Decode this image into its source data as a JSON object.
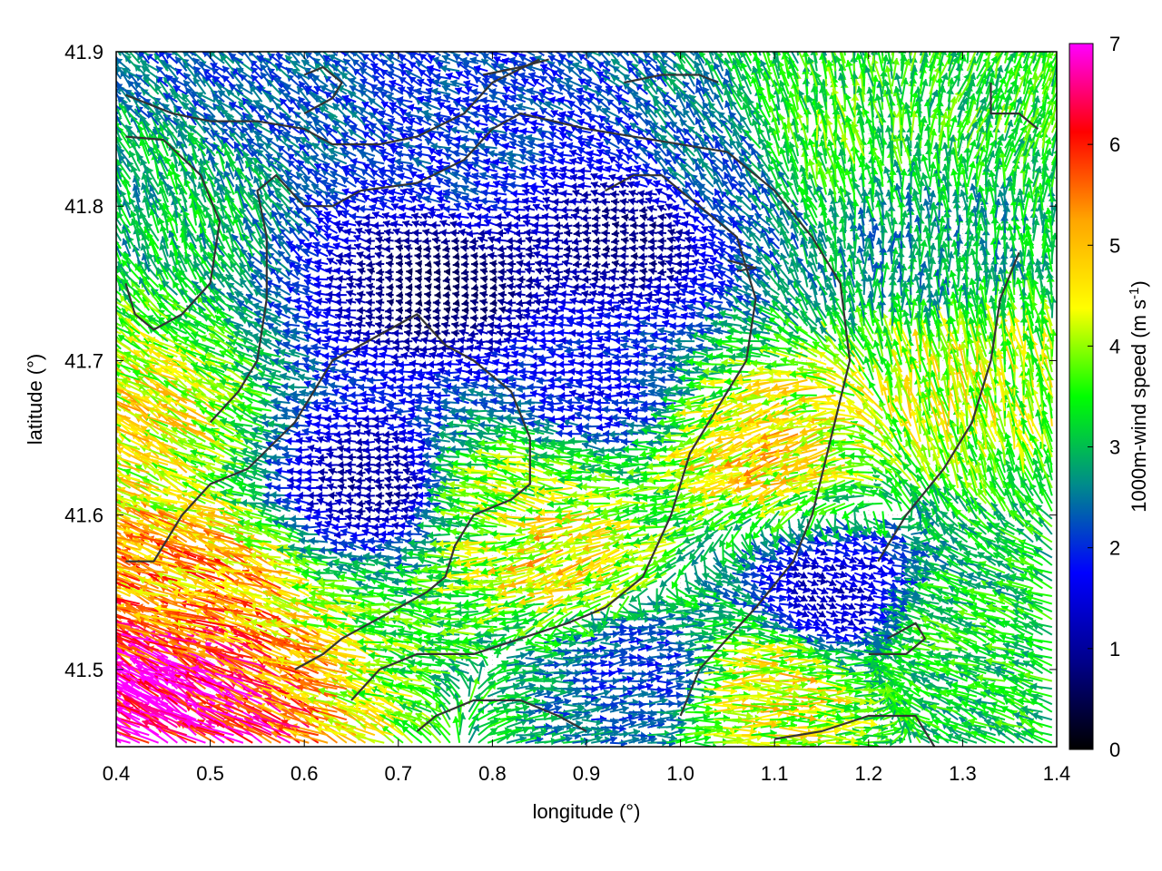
{
  "chart_data": {
    "type": "vector-field",
    "title": "",
    "xlabel": "longitude (°)",
    "ylabel": "latitude (°)",
    "xlim": [
      0.4,
      1.4
    ],
    "ylim": [
      41.45,
      41.9
    ],
    "x_ticks": [
      "0.4",
      "0.5",
      "0.6",
      "0.7",
      "0.8",
      "0.9",
      "1.0",
      "1.1",
      "1.2",
      "1.3",
      "1.4"
    ],
    "y_ticks": [
      "41.5",
      "41.6",
      "41.7",
      "41.8",
      "41.9"
    ],
    "grid": true,
    "colorbar": {
      "label_prefix": "1000m-wind speed (m s",
      "label_superscript": "-1",
      "label_suffix": ")",
      "range": [
        0,
        7
      ],
      "ticks": [
        "0",
        "1",
        "2",
        "3",
        "4",
        "5",
        "6",
        "7"
      ],
      "palette": [
        "#000000",
        "#00008b",
        "#0000ff",
        "#008b8b",
        "#00ff00",
        "#ffff00",
        "#ffa500",
        "#ff0000",
        "#ff00ff"
      ]
    },
    "grid_resolution_deg": [
      0.01,
      0.005
    ],
    "wind_regions": [
      {
        "lon": 0.45,
        "lat": 41.48,
        "speed": 6.8,
        "direction_to_deg": 150
      },
      {
        "lon": 0.5,
        "lat": 41.55,
        "speed": 5.2,
        "direction_to_deg": 160
      },
      {
        "lon": 0.43,
        "lat": 41.66,
        "speed": 4.5,
        "direction_to_deg": 150
      },
      {
        "lon": 0.47,
        "lat": 41.8,
        "speed": 3.0,
        "direction_to_deg": 110
      },
      {
        "lon": 0.55,
        "lat": 41.87,
        "speed": 2.3,
        "direction_to_deg": 140
      },
      {
        "lon": 0.68,
        "lat": 41.62,
        "speed": 1.0,
        "direction_to_deg": 175
      },
      {
        "lon": 0.75,
        "lat": 41.75,
        "speed": 0.6,
        "direction_to_deg": 180
      },
      {
        "lon": 0.78,
        "lat": 41.83,
        "speed": 2.1,
        "direction_to_deg": 160
      },
      {
        "lon": 0.83,
        "lat": 41.61,
        "speed": 3.9,
        "direction_to_deg": 165
      },
      {
        "lon": 0.88,
        "lat": 41.58,
        "speed": 4.6,
        "direction_to_deg": 200
      },
      {
        "lon": 0.92,
        "lat": 41.68,
        "speed": 1.8,
        "direction_to_deg": 175
      },
      {
        "lon": 0.95,
        "lat": 41.78,
        "speed": 0.8,
        "direction_to_deg": 180
      },
      {
        "lon": 0.95,
        "lat": 41.5,
        "speed": 2.0,
        "direction_to_deg": 5
      },
      {
        "lon": 1.08,
        "lat": 41.49,
        "speed": 4.5,
        "direction_to_deg": 0
      },
      {
        "lon": 1.15,
        "lat": 41.55,
        "speed": 1.3,
        "direction_to_deg": 340
      },
      {
        "lon": 1.1,
        "lat": 41.65,
        "speed": 4.7,
        "direction_to_deg": 200
      },
      {
        "lon": 1.05,
        "lat": 41.82,
        "speed": 2.4,
        "direction_to_deg": 130
      },
      {
        "lon": 1.15,
        "lat": 41.84,
        "speed": 3.6,
        "direction_to_deg": 100
      },
      {
        "lon": 1.25,
        "lat": 41.76,
        "speed": 2.7,
        "direction_to_deg": 90
      },
      {
        "lon": 1.3,
        "lat": 41.68,
        "speed": 4.2,
        "direction_to_deg": 100
      },
      {
        "lon": 1.35,
        "lat": 41.87,
        "speed": 3.4,
        "direction_to_deg": 70
      },
      {
        "lon": 1.3,
        "lat": 41.52,
        "speed": 3.3,
        "direction_to_deg": 160
      }
    ],
    "contours": [
      [
        [
          0.41,
          41.845
        ],
        [
          0.45,
          41.843
        ],
        [
          0.49,
          41.82
        ],
        [
          0.51,
          41.79
        ],
        [
          0.5,
          41.75
        ],
        [
          0.47,
          41.73
        ],
        [
          0.44,
          41.72
        ],
        [
          0.42,
          41.73
        ],
        [
          0.41,
          41.75
        ]
      ],
      [
        [
          0.41,
          41.872
        ],
        [
          0.46,
          41.86
        ],
        [
          0.5,
          41.855
        ],
        [
          0.55,
          41.855
        ],
        [
          0.6,
          41.85
        ],
        [
          0.63,
          41.84
        ],
        [
          0.68,
          41.84
        ],
        [
          0.72,
          41.845
        ],
        [
          0.77,
          41.86
        ],
        [
          0.8,
          41.88
        ],
        [
          0.85,
          41.895
        ]
      ],
      [
        [
          0.5,
          41.66
        ],
        [
          0.53,
          41.68
        ],
        [
          0.55,
          41.7
        ],
        [
          0.56,
          41.74
        ],
        [
          0.56,
          41.78
        ],
        [
          0.55,
          41.81
        ],
        [
          0.57,
          41.82
        ],
        [
          0.6,
          41.8
        ],
        [
          0.63,
          41.8
        ],
        [
          0.66,
          41.81
        ],
        [
          0.72,
          41.815
        ],
        [
          0.77,
          41.83
        ],
        [
          0.8,
          41.85
        ],
        [
          0.83,
          41.86
        ],
        [
          0.9,
          41.85
        ],
        [
          0.95,
          41.845
        ],
        [
          1.0,
          41.84
        ],
        [
          1.05,
          41.835
        ],
        [
          1.1,
          41.81
        ],
        [
          1.14,
          41.78
        ],
        [
          1.17,
          41.75
        ],
        [
          1.18,
          41.7
        ],
        [
          1.16,
          41.65
        ],
        [
          1.14,
          41.6
        ],
        [
          1.12,
          41.57
        ],
        [
          1.08,
          41.54
        ],
        [
          1.05,
          41.52
        ],
        [
          1.02,
          41.5
        ],
        [
          1.0,
          41.47
        ]
      ],
      [
        [
          0.41,
          41.57
        ],
        [
          0.44,
          41.57
        ],
        [
          0.47,
          41.6
        ],
        [
          0.5,
          41.62
        ],
        [
          0.54,
          41.63
        ],
        [
          0.59,
          41.66
        ],
        [
          0.63,
          41.7
        ],
        [
          0.66,
          41.71
        ],
        [
          0.69,
          41.72
        ],
        [
          0.72,
          41.73
        ],
        [
          0.75,
          41.71
        ],
        [
          0.78,
          41.7
        ],
        [
          0.82,
          41.68
        ],
        [
          0.84,
          41.65
        ],
        [
          0.84,
          41.62
        ],
        [
          0.82,
          41.61
        ],
        [
          0.78,
          41.6
        ],
        [
          0.76,
          41.58
        ],
        [
          0.75,
          41.56
        ],
        [
          0.73,
          41.55
        ],
        [
          0.7,
          41.54
        ],
        [
          0.67,
          41.53
        ],
        [
          0.64,
          41.52
        ],
        [
          0.62,
          41.51
        ],
        [
          0.59,
          41.5
        ]
      ],
      [
        [
          0.65,
          41.48
        ],
        [
          0.68,
          41.5
        ],
        [
          0.72,
          41.51
        ],
        [
          0.78,
          41.51
        ],
        [
          0.83,
          41.52
        ],
        [
          0.88,
          41.53
        ],
        [
          0.92,
          41.54
        ],
        [
          0.96,
          41.56
        ],
        [
          0.99,
          41.6
        ],
        [
          1.01,
          41.64
        ],
        [
          1.04,
          41.67
        ],
        [
          1.07,
          41.7
        ],
        [
          1.08,
          41.74
        ],
        [
          1.06,
          41.78
        ],
        [
          1.02,
          41.8
        ],
        [
          0.98,
          41.82
        ],
        [
          0.95,
          41.82
        ],
        [
          0.92,
          41.81
        ]
      ],
      [
        [
          1.27,
          41.45
        ],
        [
          1.25,
          41.47
        ],
        [
          1.2,
          41.47
        ],
        [
          1.15,
          41.46
        ],
        [
          1.1,
          41.455
        ]
      ],
      [
        [
          1.2,
          41.51
        ],
        [
          1.24,
          41.51
        ],
        [
          1.26,
          41.52
        ],
        [
          1.25,
          41.53
        ],
        [
          1.22,
          41.52
        ]
      ],
      [
        [
          1.21,
          41.57
        ],
        [
          1.24,
          41.6
        ],
        [
          1.28,
          41.63
        ],
        [
          1.31,
          41.66
        ],
        [
          1.33,
          41.7
        ],
        [
          1.34,
          41.74
        ],
        [
          1.36,
          41.77
        ]
      ],
      [
        [
          1.33,
          41.88
        ],
        [
          1.33,
          41.86
        ],
        [
          1.36,
          41.86
        ],
        [
          1.38,
          41.85
        ]
      ],
      [
        [
          0.72,
          41.46
        ],
        [
          0.74,
          41.47
        ],
        [
          0.78,
          41.48
        ],
        [
          0.83,
          41.48
        ],
        [
          0.87,
          41.47
        ],
        [
          0.9,
          41.46
        ]
      ],
      [
        [
          0.6,
          41.86
        ],
        [
          0.63,
          41.87
        ],
        [
          0.64,
          41.88
        ],
        [
          0.62,
          41.89
        ],
        [
          0.6,
          41.885
        ]
      ],
      [
        [
          0.79,
          41.885
        ],
        [
          0.83,
          41.89
        ],
        [
          0.86,
          41.895
        ]
      ],
      [
        [
          0.94,
          41.88
        ],
        [
          0.98,
          41.885
        ],
        [
          1.02,
          41.885
        ],
        [
          1.04,
          41.88
        ]
      ],
      [
        [
          1.05,
          41.765
        ],
        [
          1.08,
          41.76
        ],
        [
          1.06,
          41.758
        ]
      ]
    ]
  }
}
